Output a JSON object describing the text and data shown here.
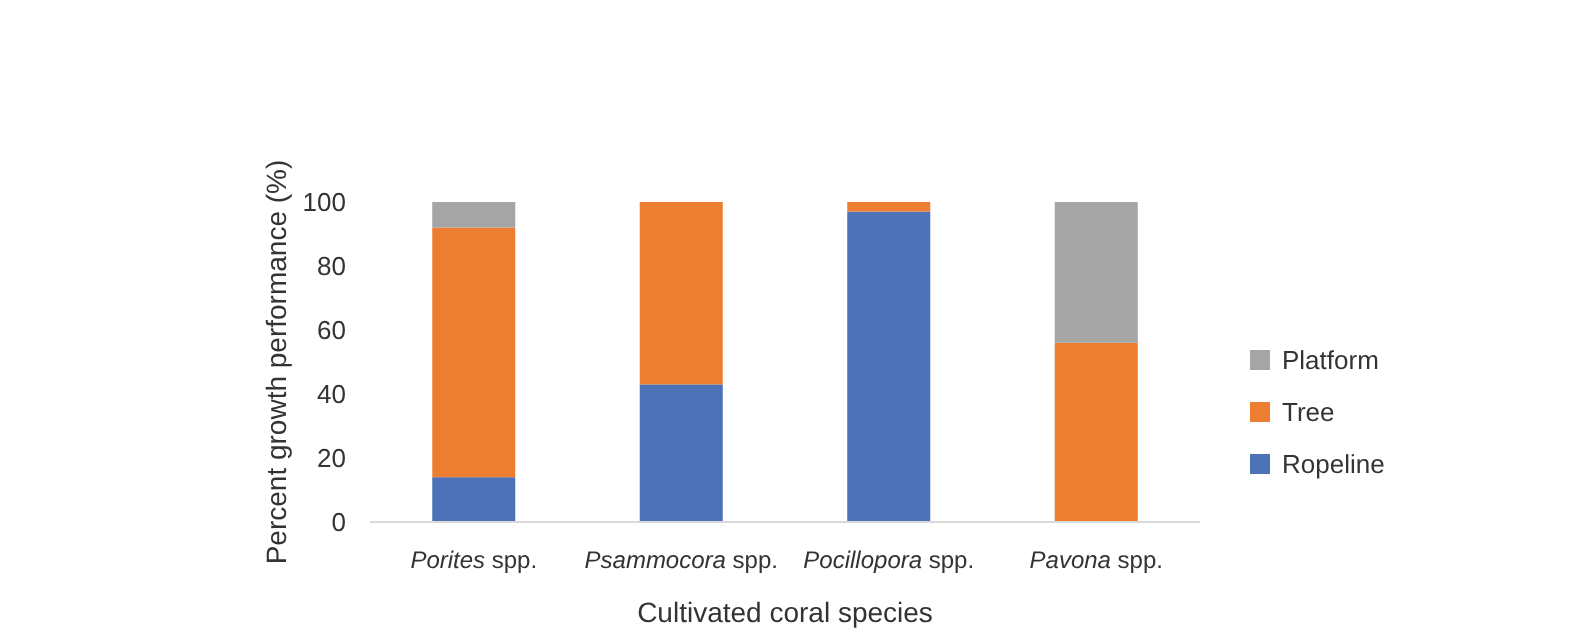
{
  "chart_data": {
    "type": "bar",
    "stacked": true,
    "xlabel": "Cultivated coral species",
    "ylabel": "Percent growth performance (%)",
    "categories": [
      "Porites spp.",
      "Psammocora spp.",
      "Pocillopora spp.",
      "Pavona spp."
    ],
    "series": [
      {
        "name": "Ropeline",
        "color": "#4e72b8",
        "values": [
          14,
          43,
          97,
          0
        ]
      },
      {
        "name": "Tree",
        "color": "#ed7d31",
        "values": [
          78,
          57,
          3,
          56
        ]
      },
      {
        "name": "Platform",
        "color": "#a5a5a5",
        "values": [
          8,
          0,
          0,
          44
        ]
      }
    ],
    "ylim": [
      0,
      100
    ],
    "yticks": [
      0,
      20,
      40,
      60,
      80,
      100
    ],
    "grid": false,
    "legend": "right"
  }
}
